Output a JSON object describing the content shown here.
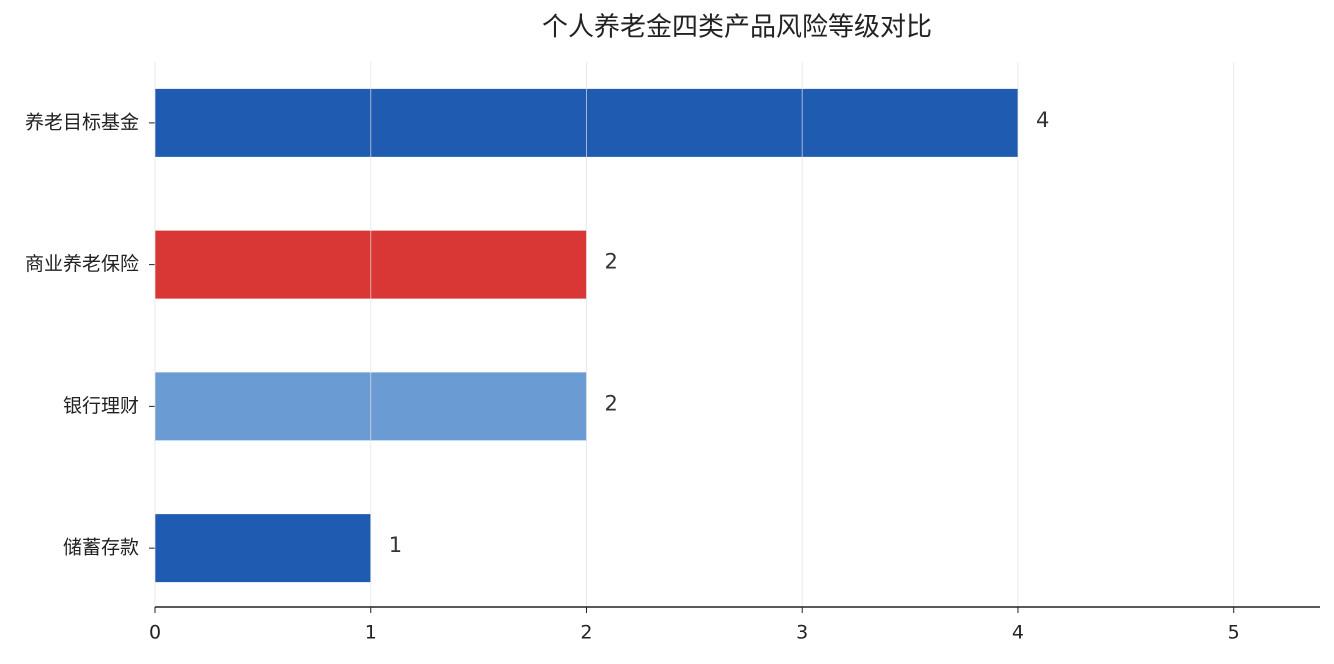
{
  "chart_data": {
    "type": "barh",
    "title": "个人养老金四类产品风险等级对比",
    "categories": [
      "养老目标基金",
      "商业养老保险",
      "银行理财",
      "储蓄存款"
    ],
    "values": [
      4,
      2,
      2,
      1
    ],
    "colors": [
      "#1f5bb0",
      "#d93636",
      "#6b9bd3",
      "#1f5bb0"
    ],
    "xlim": [
      0,
      5.4
    ],
    "xticks": [
      0,
      1,
      2,
      3,
      4,
      5
    ],
    "grid": true
  }
}
